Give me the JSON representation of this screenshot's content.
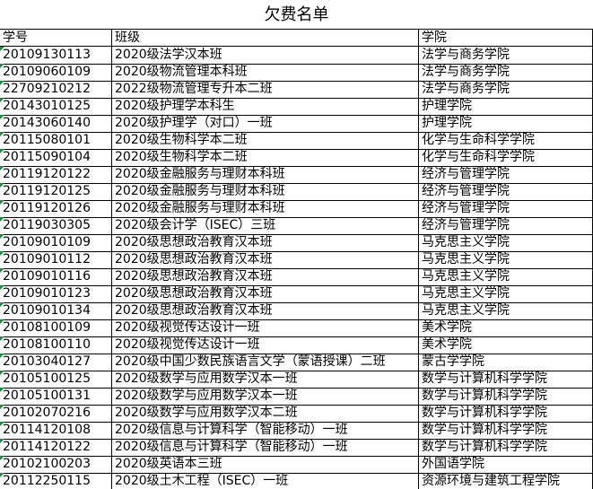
{
  "title": "欠费名单",
  "table": {
    "header": [
      "学号",
      "班级",
      "学院"
    ],
    "rows": [
      [
        "20109130113",
        "2020级法学汉本班",
        "法学与商务学院"
      ],
      [
        "20109060109",
        "2020级物流管理本科班",
        "法学与商务学院"
      ],
      [
        "22709210212",
        "2022级物流管理专升本二班",
        "法学与商务学院"
      ],
      [
        "20143010125",
        "2020级护理学本科生",
        "护理学院"
      ],
      [
        "20143060140",
        "2020级护理学（对口）一班",
        "护理学院"
      ],
      [
        "20115080101",
        "2020级生物科学本二班",
        "化学与生命科学学院"
      ],
      [
        "20115090104",
        "2020级生物科学本二班",
        "化学与生命科学学院"
      ],
      [
        "20119120122",
        "2020级金融服务与理财本科班",
        "经济与管理学院"
      ],
      [
        "20119120125",
        "2020级金融服务与理财本科班",
        "经济与管理学院"
      ],
      [
        "20119120126",
        "2020级金融服务与理财本科班",
        "经济与管理学院"
      ],
      [
        "20119030305",
        "2020级会计学（ISEC）三班",
        "经济与管理学院"
      ],
      [
        "20109010109",
        "2020级思想政治教育汉本班",
        "马克思主义学院"
      ],
      [
        "20109010112",
        "2020级思想政治教育汉本班",
        "马克思主义学院"
      ],
      [
        "20109010116",
        "2020级思想政治教育汉本班",
        "马克思主义学院"
      ],
      [
        "20109010123",
        "2020级思想政治教育汉本班",
        "马克思主义学院"
      ],
      [
        "20109010134",
        "2020级思想政治教育汉本班",
        "马克思主义学院"
      ],
      [
        "20108100109",
        "2020级视觉传达设计一班",
        "美术学院"
      ],
      [
        "20108100110",
        "2020级视觉传达设计一班",
        "美术学院"
      ],
      [
        "20103040127",
        "2020级中国少数民族语言文学（蒙语授课）二班",
        "蒙古学学院"
      ],
      [
        "20105100125",
        "2020级数学与应用数学汉本一班",
        "数学与计算机科学学院"
      ],
      [
        "20105100131",
        "2020级数学与应用数学汉本一班",
        "数学与计算机科学学院"
      ],
      [
        "20102070216",
        "2020级数学与应用数学汉本二班",
        "数学与计算机科学学院"
      ],
      [
        "20114120108",
        "2020级信息与计算科学（智能移动）一班",
        "数学与计算机科学学院"
      ],
      [
        "20114120122",
        "2020级信息与计算科学（智能移动）一班",
        "数学与计算机科学学院"
      ],
      [
        "20102100203",
        "2020级英语本三班",
        "外国语学院"
      ],
      [
        "20112250115",
        "2020级土木工程（ISEC）一班",
        "资源环境与建筑工程学院"
      ]
    ]
  }
}
